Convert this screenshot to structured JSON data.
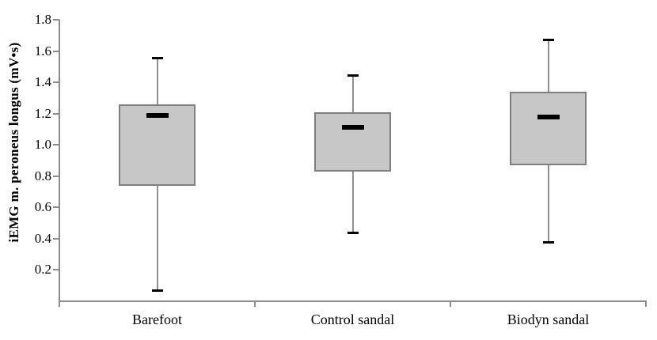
{
  "chart_data": {
    "type": "boxplot",
    "title": "",
    "xlabel": "",
    "ylabel": "iEMG m. peroneus longus (mV•s)",
    "ylim": [
      0,
      1.8
    ],
    "yticks": [
      "0.2",
      "0.4",
      "0.6",
      "0.8",
      "1.0",
      "1.2",
      "1.4",
      "1.6",
      "1.8"
    ],
    "grid": false,
    "legend": "none",
    "categories": [
      "Barefoot",
      "Control sandal",
      "Biodyn sandal"
    ],
    "boxes": [
      {
        "category": "Barefoot",
        "whisker_low": 0.07,
        "q1": 0.74,
        "median": 1.19,
        "q3": 1.26,
        "whisker_high": 1.55
      },
      {
        "category": "Control sandal",
        "whisker_low": 0.44,
        "q1": 0.83,
        "median": 1.11,
        "q3": 1.21,
        "whisker_high": 1.44
      },
      {
        "category": "Biodyn sandal",
        "whisker_low": 0.38,
        "q1": 0.87,
        "median": 1.18,
        "q3": 1.34,
        "whisker_high": 1.67
      }
    ],
    "colors": {
      "box_fill": "#c7c7c7",
      "box_border": "#7f7f7f",
      "whisker_line": "#909090",
      "whisker_cap": "#000000",
      "median_marker": "#000000",
      "axis": "#8c8c8c",
      "text": "#000000",
      "background": "#ffffff"
    }
  }
}
